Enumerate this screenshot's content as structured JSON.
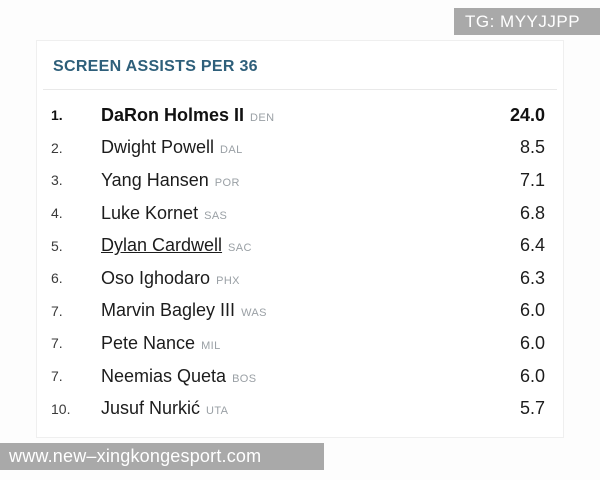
{
  "watermarks": {
    "top": "TG: MYYJJPP",
    "bottom": "www.new–xingkongesport.com"
  },
  "table": {
    "title": "SCREEN ASSISTS PER 36",
    "rows": [
      {
        "rank": "1.",
        "name": "DaRon Holmes II",
        "team": "DEN",
        "value": "24.0",
        "bold": true,
        "underline": false
      },
      {
        "rank": "2.",
        "name": "Dwight Powell",
        "team": "DAL",
        "value": "8.5",
        "bold": false,
        "underline": false
      },
      {
        "rank": "3.",
        "name": "Yang Hansen",
        "team": "POR",
        "value": "7.1",
        "bold": false,
        "underline": false
      },
      {
        "rank": "4.",
        "name": "Luke Kornet",
        "team": "SAS",
        "value": "6.8",
        "bold": false,
        "underline": false
      },
      {
        "rank": "5.",
        "name": "Dylan Cardwell",
        "team": "SAC",
        "value": "6.4",
        "bold": false,
        "underline": true
      },
      {
        "rank": "6.",
        "name": "Oso Ighodaro",
        "team": "PHX",
        "value": "6.3",
        "bold": false,
        "underline": false
      },
      {
        "rank": "7.",
        "name": "Marvin Bagley III",
        "team": "WAS",
        "value": "6.0",
        "bold": false,
        "underline": false
      },
      {
        "rank": "7.",
        "name": "Pete Nance",
        "team": "MIL",
        "value": "6.0",
        "bold": false,
        "underline": false
      },
      {
        "rank": "7.",
        "name": "Neemias Queta",
        "team": "BOS",
        "value": "6.0",
        "bold": false,
        "underline": false
      },
      {
        "rank": "10.",
        "name": "Jusuf Nurkić",
        "team": "UTA",
        "value": "5.7",
        "bold": false,
        "underline": false
      }
    ]
  },
  "colors": {
    "title_color": "#2e5f7a",
    "team_color": "#9aa0a5",
    "text_color": "#1c1c1c",
    "rank_color": "#3a3a3a",
    "divider_color": "#e9e9e9",
    "watermark_bg": "#a9a9a9",
    "card_border": "#efefef",
    "page_bg": "#fdfdfd"
  }
}
